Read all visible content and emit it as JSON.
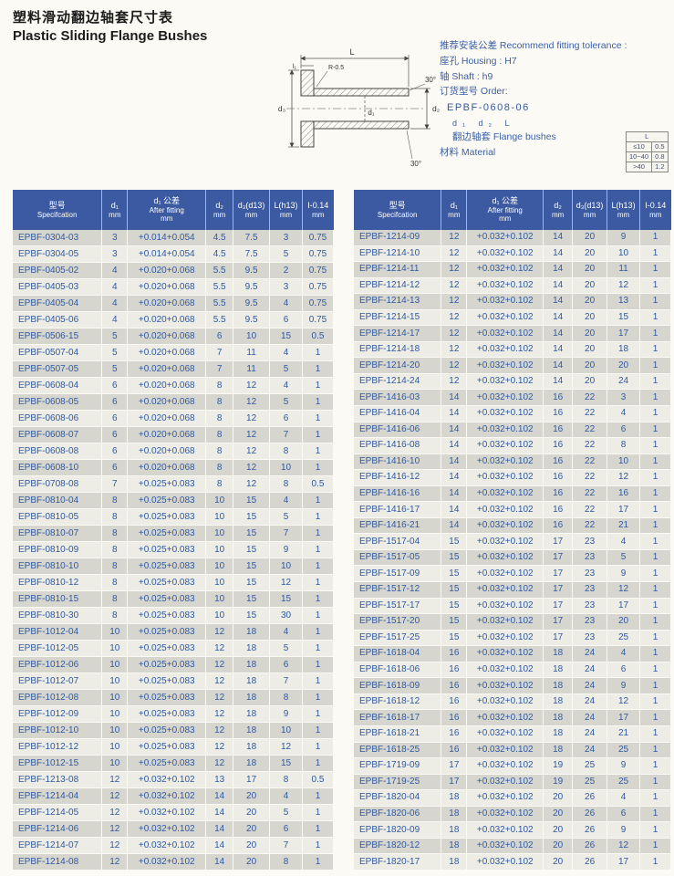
{
  "page": {
    "title_cn": "塑料滑动翻边轴套尺寸表",
    "title_en": "Plastic Sliding Flange Bushes"
  },
  "info": {
    "tolerance_line": "推荐安装公差 Recommend fitting tolerance :",
    "housing_line": "座孔 Housing : H7",
    "shaft_line": "轴 Shaft : h9",
    "order_label": "订货型号 Order:",
    "order_code": "EPBF-0608-06",
    "order_parts": "d₁ d₂ L",
    "flange_line": "翻边轴套 Flange bushes",
    "material_line": "材料 Material"
  },
  "chamfer_table": {
    "title": "L",
    "rows": [
      [
        "≤10",
        "0.5"
      ],
      [
        "10~40",
        "0.8"
      ],
      [
        ">40",
        "1.2"
      ]
    ]
  },
  "diagram": {
    "dim_L": "L",
    "dim_l1": "l₁",
    "dim_R": "R-0.5",
    "angle_top": "30°",
    "angle_bottom": "30°",
    "dim_d1": "d₁",
    "dim_d2": "d₂",
    "dim_d3": "d₃"
  },
  "table_header": {
    "spec_cn": "型号",
    "spec_en": "Specifcation",
    "d1": "d₁",
    "d1_tol_cn": "d₁ 公差",
    "d1_tol_en": "After fitting",
    "d2": "d₂",
    "d3": "d₃(d13)",
    "L": "L(h13)",
    "I": "I-0.14",
    "mm": "mm"
  },
  "left_table_rows": [
    [
      "EPBF-0304-03",
      "3",
      "+0.014+0.054",
      "4.5",
      "7.5",
      "3",
      "0.75"
    ],
    [
      "EPBF-0304-05",
      "3",
      "+0.014+0.054",
      "4.5",
      "7.5",
      "5",
      "0.75"
    ],
    [
      "EPBF-0405-02",
      "4",
      "+0.020+0.068",
      "5.5",
      "9.5",
      "2",
      "0.75"
    ],
    [
      "EPBF-0405-03",
      "4",
      "+0.020+0.068",
      "5.5",
      "9.5",
      "3",
      "0.75"
    ],
    [
      "EPBF-0405-04",
      "4",
      "+0.020+0.068",
      "5.5",
      "9.5",
      "4",
      "0.75"
    ],
    [
      "EPBF-0405-06",
      "4",
      "+0.020+0.068",
      "5.5",
      "9.5",
      "6",
      "0.75"
    ],
    [
      "EPBF-0506-15",
      "5",
      "+0.020+0.068",
      "6",
      "10",
      "15",
      "0.5"
    ],
    [
      "EPBF-0507-04",
      "5",
      "+0.020+0.068",
      "7",
      "11",
      "4",
      "1"
    ],
    [
      "EPBF-0507-05",
      "5",
      "+0.020+0.068",
      "7",
      "11",
      "5",
      "1"
    ],
    [
      "EPBF-0608-04",
      "6",
      "+0.020+0.068",
      "8",
      "12",
      "4",
      "1"
    ],
    [
      "EPBF-0608-05",
      "6",
      "+0.020+0.068",
      "8",
      "12",
      "5",
      "1"
    ],
    [
      "EPBF-0608-06",
      "6",
      "+0.020+0.068",
      "8",
      "12",
      "6",
      "1"
    ],
    [
      "EPBF-0608-07",
      "6",
      "+0.020+0.068",
      "8",
      "12",
      "7",
      "1"
    ],
    [
      "EPBF-0608-08",
      "6",
      "+0.020+0.068",
      "8",
      "12",
      "8",
      "1"
    ],
    [
      "EPBF-0608-10",
      "6",
      "+0.020+0.068",
      "8",
      "12",
      "10",
      "1"
    ],
    [
      "EPBF-0708-08",
      "7",
      "+0.025+0.083",
      "8",
      "12",
      "8",
      "0.5"
    ],
    [
      "EPBF-0810-04",
      "8",
      "+0.025+0.083",
      "10",
      "15",
      "4",
      "1"
    ],
    [
      "EPBF-0810-05",
      "8",
      "+0.025+0.083",
      "10",
      "15",
      "5",
      "1"
    ],
    [
      "EPBF-0810-07",
      "8",
      "+0.025+0.083",
      "10",
      "15",
      "7",
      "1"
    ],
    [
      "EPBF-0810-09",
      "8",
      "+0.025+0.083",
      "10",
      "15",
      "9",
      "1"
    ],
    [
      "EPBF-0810-10",
      "8",
      "+0.025+0.083",
      "10",
      "15",
      "10",
      "1"
    ],
    [
      "EPBF-0810-12",
      "8",
      "+0.025+0.083",
      "10",
      "15",
      "12",
      "1"
    ],
    [
      "EPBF-0810-15",
      "8",
      "+0.025+0.083",
      "10",
      "15",
      "15",
      "1"
    ],
    [
      "EPBF-0810-30",
      "8",
      "+0.025+0.083",
      "10",
      "15",
      "30",
      "1"
    ],
    [
      "EPBF-1012-04",
      "10",
      "+0.025+0.083",
      "12",
      "18",
      "4",
      "1"
    ],
    [
      "EPBF-1012-05",
      "10",
      "+0.025+0.083",
      "12",
      "18",
      "5",
      "1"
    ],
    [
      "EPBF-1012-06",
      "10",
      "+0.025+0.083",
      "12",
      "18",
      "6",
      "1"
    ],
    [
      "EPBF-1012-07",
      "10",
      "+0.025+0.083",
      "12",
      "18",
      "7",
      "1"
    ],
    [
      "EPBF-1012-08",
      "10",
      "+0.025+0.083",
      "12",
      "18",
      "8",
      "1"
    ],
    [
      "EPBF-1012-09",
      "10",
      "+0.025+0.083",
      "12",
      "18",
      "9",
      "1"
    ],
    [
      "EPBF-1012-10",
      "10",
      "+0.025+0.083",
      "12",
      "18",
      "10",
      "1"
    ],
    [
      "EPBF-1012-12",
      "10",
      "+0.025+0.083",
      "12",
      "18",
      "12",
      "1"
    ],
    [
      "EPBF-1012-15",
      "10",
      "+0.025+0.083",
      "12",
      "18",
      "15",
      "1"
    ],
    [
      "EPBF-1213-08",
      "12",
      "+0.032+0.102",
      "13",
      "17",
      "8",
      "0.5"
    ],
    [
      "EPBF-1214-04",
      "12",
      "+0.032+0.102",
      "14",
      "20",
      "4",
      "1"
    ],
    [
      "EPBF-1214-05",
      "12",
      "+0.032+0.102",
      "14",
      "20",
      "5",
      "1"
    ],
    [
      "EPBF-1214-06",
      "12",
      "+0.032+0.102",
      "14",
      "20",
      "6",
      "1"
    ],
    [
      "EPBF-1214-07",
      "12",
      "+0.032+0.102",
      "14",
      "20",
      "7",
      "1"
    ],
    [
      "EPBF-1214-08",
      "12",
      "+0.032+0.102",
      "14",
      "20",
      "8",
      "1"
    ]
  ],
  "right_table_rows": [
    [
      "EPBF-1214-09",
      "12",
      "+0.032+0.102",
      "14",
      "20",
      "9",
      "1"
    ],
    [
      "EPBF-1214-10",
      "12",
      "+0.032+0.102",
      "14",
      "20",
      "10",
      "1"
    ],
    [
      "EPBF-1214-11",
      "12",
      "+0.032+0.102",
      "14",
      "20",
      "11",
      "1"
    ],
    [
      "EPBF-1214-12",
      "12",
      "+0.032+0.102",
      "14",
      "20",
      "12",
      "1"
    ],
    [
      "EPBF-1214-13",
      "12",
      "+0.032+0.102",
      "14",
      "20",
      "13",
      "1"
    ],
    [
      "EPBF-1214-15",
      "12",
      "+0.032+0.102",
      "14",
      "20",
      "15",
      "1"
    ],
    [
      "EPBF-1214-17",
      "12",
      "+0.032+0.102",
      "14",
      "20",
      "17",
      "1"
    ],
    [
      "EPBF-1214-18",
      "12",
      "+0.032+0.102",
      "14",
      "20",
      "18",
      "1"
    ],
    [
      "EPBF-1214-20",
      "12",
      "+0.032+0.102",
      "14",
      "20",
      "20",
      "1"
    ],
    [
      "EPBF-1214-24",
      "12",
      "+0.032+0.102",
      "14",
      "20",
      "24",
      "1"
    ],
    [
      "EPBF-1416-03",
      "14",
      "+0.032+0.102",
      "16",
      "22",
      "3",
      "1"
    ],
    [
      "EPBF-1416-04",
      "14",
      "+0.032+0.102",
      "16",
      "22",
      "4",
      "1"
    ],
    [
      "EPBF-1416-06",
      "14",
      "+0.032+0.102",
      "16",
      "22",
      "6",
      "1"
    ],
    [
      "EPBF-1416-08",
      "14",
      "+0.032+0.102",
      "16",
      "22",
      "8",
      "1"
    ],
    [
      "EPBF-1416-10",
      "14",
      "+0.032+0.102",
      "16",
      "22",
      "10",
      "1"
    ],
    [
      "EPBF-1416-12",
      "14",
      "+0.032+0.102",
      "16",
      "22",
      "12",
      "1"
    ],
    [
      "EPBF-1416-16",
      "14",
      "+0.032+0.102",
      "16",
      "22",
      "16",
      "1"
    ],
    [
      "EPBF-1416-17",
      "14",
      "+0.032+0.102",
      "16",
      "22",
      "17",
      "1"
    ],
    [
      "EPBF-1416-21",
      "14",
      "+0.032+0.102",
      "16",
      "22",
      "21",
      "1"
    ],
    [
      "EPBF-1517-04",
      "15",
      "+0.032+0.102",
      "17",
      "23",
      "4",
      "1"
    ],
    [
      "EPBF-1517-05",
      "15",
      "+0.032+0.102",
      "17",
      "23",
      "5",
      "1"
    ],
    [
      "EPBF-1517-09",
      "15",
      "+0.032+0.102",
      "17",
      "23",
      "9",
      "1"
    ],
    [
      "EPBF-1517-12",
      "15",
      "+0.032+0.102",
      "17",
      "23",
      "12",
      "1"
    ],
    [
      "EPBF-1517-17",
      "15",
      "+0.032+0.102",
      "17",
      "23",
      "17",
      "1"
    ],
    [
      "EPBF-1517-20",
      "15",
      "+0.032+0.102",
      "17",
      "23",
      "20",
      "1"
    ],
    [
      "EPBF-1517-25",
      "15",
      "+0.032+0.102",
      "17",
      "23",
      "25",
      "1"
    ],
    [
      "EPBF-1618-04",
      "16",
      "+0.032+0.102",
      "18",
      "24",
      "4",
      "1"
    ],
    [
      "EPBF-1618-06",
      "16",
      "+0.032+0.102",
      "18",
      "24",
      "6",
      "1"
    ],
    [
      "EPBF-1618-09",
      "16",
      "+0.032+0.102",
      "18",
      "24",
      "9",
      "1"
    ],
    [
      "EPBF-1618-12",
      "16",
      "+0.032+0.102",
      "18",
      "24",
      "12",
      "1"
    ],
    [
      "EPBF-1618-17",
      "16",
      "+0.032+0.102",
      "18",
      "24",
      "17",
      "1"
    ],
    [
      "EPBF-1618-21",
      "16",
      "+0.032+0.102",
      "18",
      "24",
      "21",
      "1"
    ],
    [
      "EPBF-1618-25",
      "16",
      "+0.032+0.102",
      "18",
      "24",
      "25",
      "1"
    ],
    [
      "EPBF-1719-09",
      "17",
      "+0.032+0.102",
      "19",
      "25",
      "9",
      "1"
    ],
    [
      "EPBF-1719-25",
      "17",
      "+0.032+0.102",
      "19",
      "25",
      "25",
      "1"
    ],
    [
      "EPBF-1820-04",
      "18",
      "+0.032+0.102",
      "20",
      "26",
      "4",
      "1"
    ],
    [
      "EPBF-1820-06",
      "18",
      "+0.032+0.102",
      "20",
      "26",
      "6",
      "1"
    ],
    [
      "EPBF-1820-09",
      "18",
      "+0.032+0.102",
      "20",
      "26",
      "9",
      "1"
    ],
    [
      "EPBF-1820-12",
      "18",
      "+0.032+0.102",
      "20",
      "26",
      "12",
      "1"
    ],
    [
      "EPBF-1820-17",
      "18",
      "+0.032+0.102",
      "20",
      "26",
      "17",
      "1"
    ]
  ]
}
